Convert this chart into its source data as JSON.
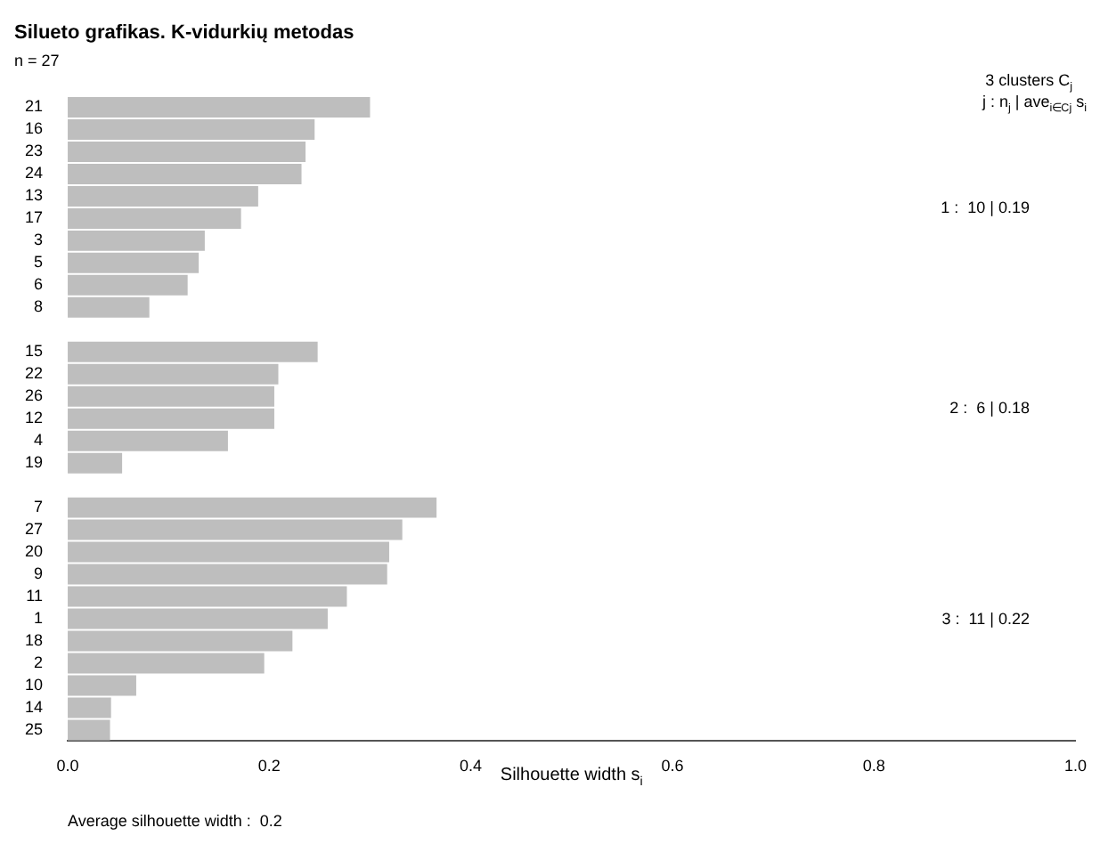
{
  "chart_data": {
    "type": "bar",
    "orientation": "horizontal",
    "title": "Silueto grafikas. K-vidurkių metodas",
    "subtitle": "n = 27",
    "xlabel": "Silhouette width s$_{i}$",
    "categories": [
      "21",
      "16",
      "23",
      "24",
      "13",
      "17",
      "3",
      "5",
      "6",
      "8",
      null,
      "15",
      "22",
      "26",
      "12",
      "4",
      "19",
      null,
      "7",
      "27",
      "20",
      "9",
      "11",
      "1",
      "18",
      "2",
      "10",
      "14",
      "25"
    ],
    "values": [
      0.3,
      0.245,
      0.236,
      0.232,
      0.189,
      0.172,
      0.136,
      0.13,
      0.119,
      0.081,
      null,
      0.248,
      0.209,
      0.205,
      0.205,
      0.159,
      0.054,
      null,
      0.366,
      0.332,
      0.319,
      0.317,
      0.277,
      0.258,
      0.223,
      0.195,
      0.068,
      0.043,
      0.042
    ],
    "color": "#bebebe",
    "xlim": [
      0,
      1
    ],
    "xticks": [
      {
        "value": 0,
        "label": "0.0"
      },
      0.2,
      0.4,
      0.6,
      0.8,
      {
        "value": 1,
        "label": "1.0"
      }
    ],
    "annotations": [
      "3 clusters C$_{j}$",
      "j : n$_{j}$ | ave$_{i∈Cj}$ s$_{i}$",
      "1 :  10 | 0.19",
      "2 :  6 | 0.18",
      "3 :  11 | 0.22",
      "Average silhouette width :  0.2"
    ]
  }
}
